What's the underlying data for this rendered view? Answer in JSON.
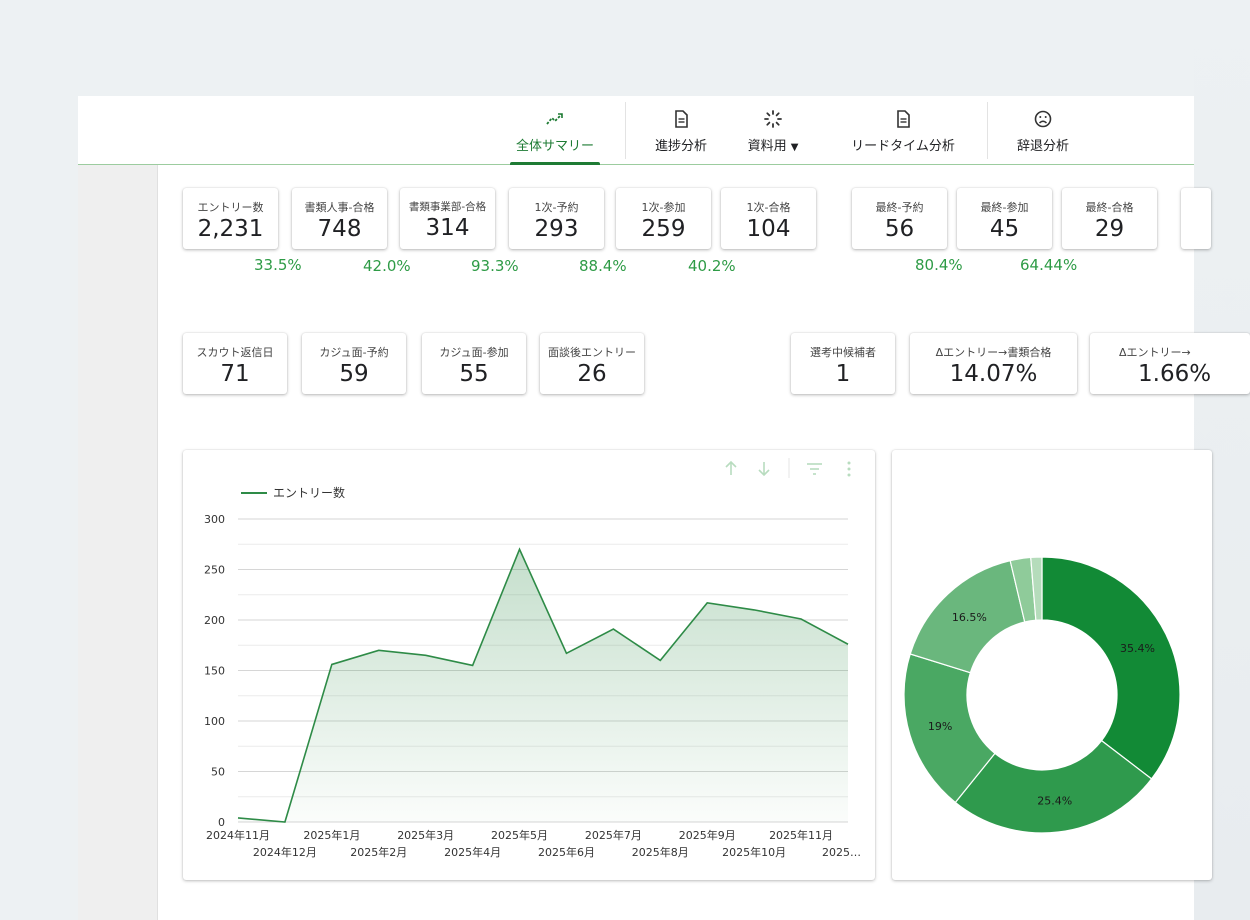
{
  "colors": {
    "accent": "#1e7b34",
    "percent_green": "#2e9b46",
    "donut": [
      "#128a36",
      "#2f9a4d",
      "#4aa863",
      "#6ab77d",
      "#8fcb9a",
      "#b5dcbb"
    ]
  },
  "nav": {
    "tabs": [
      {
        "label": "全体サマリー",
        "icon": "trend-icon",
        "active": true
      },
      {
        "label": "進捗分析",
        "icon": "document-icon"
      },
      {
        "label": "資料用",
        "icon": "loading-icon",
        "dropdown": true
      },
      {
        "label": "リードタイム分析",
        "icon": "document-icon"
      },
      {
        "label": "辞退分析",
        "icon": "sad-face-icon"
      }
    ]
  },
  "kpi_row1": [
    {
      "label": "エントリー数",
      "value": "2,231"
    },
    {
      "label": "書類人事-合格",
      "value": "748"
    },
    {
      "label": "書類事業部-合格",
      "value": "314"
    },
    {
      "label": "1次-予約",
      "value": "293"
    },
    {
      "label": "1次-参加",
      "value": "259"
    },
    {
      "label": "1次-合格",
      "value": "104"
    },
    {
      "label": "最終-予約",
      "value": "56"
    },
    {
      "label": "最終-参加",
      "value": "45"
    },
    {
      "label": "最終-合格",
      "value": "29"
    }
  ],
  "conversion_row1": [
    "33.5%",
    "42.0%",
    "93.3%",
    "88.4%",
    "40.2%",
    "80.4%",
    "64.44%"
  ],
  "kpi_row2": [
    {
      "label": "スカウト返信日",
      "value": "71"
    },
    {
      "label": "カジュ面-予約",
      "value": "59"
    },
    {
      "label": "カジュ面-参加",
      "value": "55"
    },
    {
      "label": "面談後エントリー",
      "value": "26"
    },
    {
      "label": "選考中候補者",
      "value": "1"
    },
    {
      "label": "Δエントリー→書類合格",
      "value": "14.07%"
    },
    {
      "label": "Δエントリー→",
      "value": "1.66%"
    }
  ],
  "chart_data": [
    {
      "type": "area",
      "legend": "エントリー数",
      "ylim": [
        0,
        300
      ],
      "yticks": [
        0,
        50,
        100,
        150,
        200,
        250,
        300
      ],
      "x_labels_top": [
        "2024年11月",
        "2025年1月",
        "2025年3月",
        "2025年5月",
        "2025年7月",
        "2025年9月",
        "2025年11月"
      ],
      "x_labels_bottom": [
        "2024年12月",
        "2025年2月",
        "2025年4月",
        "2025年6月",
        "2025年8月",
        "2025年10月",
        "2025…"
      ],
      "series": [
        {
          "name": "エントリー数",
          "values": [
            4,
            0,
            156,
            170,
            165,
            155,
            270,
            167,
            191,
            160,
            217,
            210,
            201,
            176
          ]
        }
      ]
    },
    {
      "type": "pie",
      "slices": [
        {
          "label": "35.4%",
          "value": 35.4
        },
        {
          "label": "25.4%",
          "value": 25.4
        },
        {
          "label": "19%",
          "value": 19.0
        },
        {
          "label": "16.5%",
          "value": 16.5
        },
        {
          "label": "",
          "value": 2.4
        },
        {
          "label": "",
          "value": 1.3
        }
      ]
    }
  ]
}
